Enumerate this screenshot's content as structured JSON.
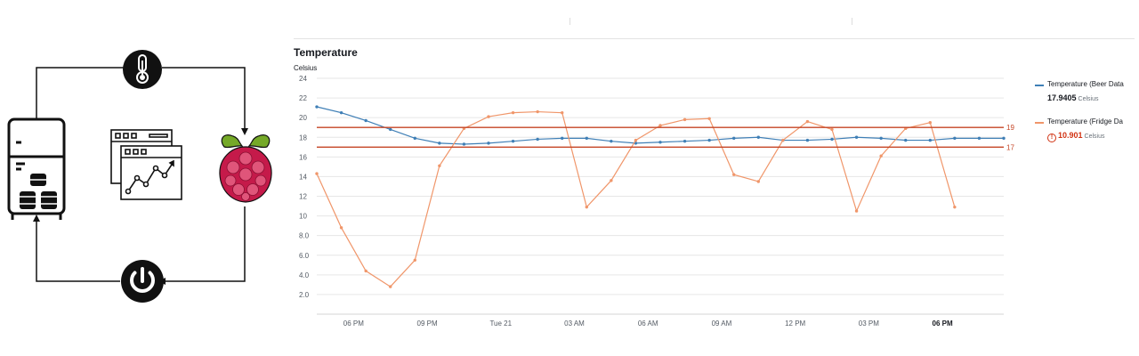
{
  "colors": {
    "beer_series": "#3f7fb6",
    "fridge_series": "#f0966a",
    "threshold": "#c54525",
    "gridline": "#e6e6e6",
    "diagram_stroke": "#111111",
    "raspberry_red": "#c51a4a",
    "raspberry_leaf": "#75a928"
  },
  "icons": {
    "thermometer": "thermometer-icon",
    "raspberry_pi": "raspberry-pi-icon",
    "power": "power-icon",
    "fridge": "fridge-with-kegs-icon",
    "dashboard": "dashboard-window-icon"
  },
  "legend": [
    {
      "name": "Temperature (Beer Data",
      "value": "17.9405",
      "unit": "Celsius",
      "alarm": false
    },
    {
      "name": "Temperature (Fridge Da",
      "value": "10.901",
      "unit": "Celsius",
      "alarm": true
    }
  ],
  "chart_data": {
    "type": "line",
    "title": "Temperature",
    "ylabel": "Celsius",
    "ylim": [
      0,
      24
    ],
    "yticks": [
      {
        "value": 24,
        "label": "24"
      },
      {
        "value": 22,
        "label": "22"
      },
      {
        "value": 20,
        "label": "20"
      },
      {
        "value": 18,
        "label": "18"
      },
      {
        "value": 16,
        "label": "16"
      },
      {
        "value": 14,
        "label": "14"
      },
      {
        "value": 12,
        "label": "12"
      },
      {
        "value": 10,
        "label": "10"
      },
      {
        "value": 8,
        "label": "8.0"
      },
      {
        "value": 6,
        "label": "6.0"
      },
      {
        "value": 4,
        "label": "4.0"
      },
      {
        "value": 2,
        "label": "2.0"
      }
    ],
    "xlim": [
      16.5,
      44.5
    ],
    "xticks": [
      {
        "value": 18,
        "label": "06 PM",
        "bold": false
      },
      {
        "value": 21,
        "label": "09 PM",
        "bold": false
      },
      {
        "value": 24,
        "label": "Tue 21",
        "bold": false
      },
      {
        "value": 27,
        "label": "03 AM",
        "bold": false
      },
      {
        "value": 30,
        "label": "06 AM",
        "bold": false
      },
      {
        "value": 33,
        "label": "09 AM",
        "bold": false
      },
      {
        "value": 36,
        "label": "12 PM",
        "bold": false
      },
      {
        "value": 39,
        "label": "03 PM",
        "bold": false
      },
      {
        "value": 42,
        "label": "06 PM",
        "bold": true
      }
    ],
    "thresholds": [
      {
        "value": 19,
        "label": "19"
      },
      {
        "value": 17,
        "label": "17"
      }
    ],
    "grid": true,
    "legend_position": "right",
    "x": [
      16.5,
      17.5,
      18.5,
      19.5,
      20.5,
      21.5,
      22.5,
      23.5,
      24.5,
      25.5,
      26.5,
      27.5,
      28.5,
      29.5,
      30.5,
      31.5,
      32.5,
      33.5,
      34.5,
      35.5,
      36.5,
      37.5,
      38.5,
      39.5,
      40.5,
      41.5,
      42.5,
      43.5,
      44.5
    ],
    "series": [
      {
        "name": "Temperature (Beer Data",
        "values": [
          21.1,
          20.5,
          19.7,
          18.8,
          17.9,
          17.4,
          17.3,
          17.4,
          17.6,
          17.8,
          17.9,
          17.9,
          17.6,
          17.4,
          17.5,
          17.6,
          17.7,
          17.9,
          18.0,
          17.7,
          17.7,
          17.8,
          18.0,
          17.9,
          17.7,
          17.7,
          17.9,
          17.9,
          17.9
        ]
      },
      {
        "name": "Temperature (Fridge Da",
        "values": [
          14.3,
          8.8,
          4.4,
          2.8,
          5.5,
          15.1,
          18.9,
          20.1,
          20.5,
          20.6,
          20.5,
          10.9,
          13.6,
          17.7,
          19.2,
          19.8,
          19.9,
          14.2,
          13.5,
          17.7,
          19.6,
          18.8,
          10.5,
          16.1,
          18.9,
          19.5,
          10.9,
          null,
          null
        ]
      }
    ]
  }
}
